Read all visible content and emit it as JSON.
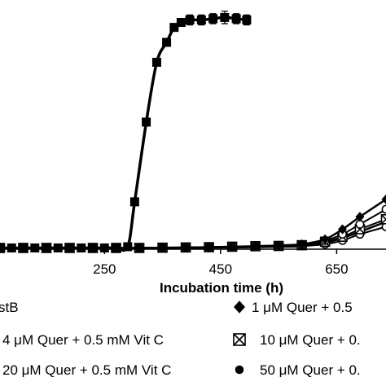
{
  "chart_data": {
    "type": "line",
    "title": "",
    "xlabel": "Incubation time (h)",
    "ylabel": "",
    "x_ticks": [
      250,
      450,
      650
    ],
    "x_tick_labels": [
      "250",
      "450",
      "650"
    ],
    "xlim": [
      70,
      735
    ],
    "ylim": [
      0,
      100
    ],
    "grid": false,
    "legend_position": "bottom",
    "series": [
      {
        "name": "",
        "marker": "square",
        "points": [
          [
            70,
            0.5
          ],
          [
            90,
            0.5
          ],
          [
            110,
            0.5
          ],
          [
            130,
            0.5
          ],
          [
            150,
            0.5
          ],
          [
            170,
            0.5
          ],
          [
            190,
            0.5
          ],
          [
            210,
            0.5
          ],
          [
            230,
            0.5
          ],
          [
            250,
            0.5
          ],
          [
            270,
            0.6
          ],
          [
            290,
            1
          ],
          [
            302,
            19
          ],
          [
            322,
            51
          ],
          [
            340,
            75
          ],
          [
            357,
            83
          ],
          [
            370,
            89
          ],
          [
            382,
            91
          ],
          [
            397,
            92
          ],
          [
            417,
            92
          ],
          [
            437,
            92.5
          ],
          [
            457,
            93
          ],
          [
            477,
            92.5
          ],
          [
            495,
            92
          ]
        ],
        "errors": [
          0,
          0,
          0,
          0,
          0,
          0,
          0,
          0,
          0,
          0,
          0,
          0,
          0,
          0,
          0,
          1.5,
          1.5,
          1.5,
          2,
          2,
          2,
          2.5,
          2,
          2
        ]
      },
      {
        "name": "1 μM Quer + 0.5",
        "marker": "diamond",
        "points": [
          [
            70,
            0.5
          ],
          [
            110,
            0.5
          ],
          [
            150,
            0.5
          ],
          [
            190,
            0.5
          ],
          [
            230,
            0.5
          ],
          [
            270,
            0.5
          ],
          [
            310,
            0.5
          ],
          [
            350,
            0.6
          ],
          [
            390,
            0.7
          ],
          [
            430,
            0.8
          ],
          [
            470,
            1
          ],
          [
            510,
            1.2
          ],
          [
            550,
            1.5
          ],
          [
            590,
            2
          ],
          [
            630,
            4
          ],
          [
            660,
            8
          ],
          [
            690,
            13
          ],
          [
            735,
            20
          ]
        ]
      },
      {
        "name": "4 μM Quer + 0.5 mM Vit C",
        "marker": "circle-open",
        "points": [
          [
            70,
            0.5
          ],
          [
            110,
            0.5
          ],
          [
            150,
            0.5
          ],
          [
            190,
            0.5
          ],
          [
            230,
            0.5
          ],
          [
            270,
            0.5
          ],
          [
            310,
            0.5
          ],
          [
            350,
            0.6
          ],
          [
            390,
            0.7
          ],
          [
            430,
            0.8
          ],
          [
            470,
            1
          ],
          [
            510,
            1.2
          ],
          [
            550,
            1.4
          ],
          [
            590,
            1.8
          ],
          [
            630,
            3.5
          ],
          [
            660,
            6
          ],
          [
            690,
            10
          ],
          [
            735,
            16
          ]
        ]
      },
      {
        "name": "10 μM Quer + 0.",
        "marker": "square-x",
        "points": [
          [
            70,
            0.5
          ],
          [
            110,
            0.5
          ],
          [
            150,
            0.5
          ],
          [
            190,
            0.5
          ],
          [
            230,
            0.5
          ],
          [
            270,
            0.5
          ],
          [
            310,
            0.5
          ],
          [
            350,
            0.6
          ],
          [
            390,
            0.7
          ],
          [
            430,
            0.8
          ],
          [
            470,
            1
          ],
          [
            510,
            1.2
          ],
          [
            550,
            1.3
          ],
          [
            590,
            1.6
          ],
          [
            630,
            3
          ],
          [
            660,
            5
          ],
          [
            690,
            8
          ],
          [
            735,
            12
          ]
        ]
      },
      {
        "name": "20 μM Quer + 0.5 mM Vit C",
        "marker": "circle-open",
        "points": [
          [
            70,
            0.5
          ],
          [
            110,
            0.5
          ],
          [
            150,
            0.5
          ],
          [
            190,
            0.5
          ],
          [
            230,
            0.5
          ],
          [
            270,
            0.5
          ],
          [
            310,
            0.5
          ],
          [
            350,
            0.5
          ],
          [
            390,
            0.6
          ],
          [
            430,
            0.7
          ],
          [
            470,
            0.8
          ],
          [
            510,
            1
          ],
          [
            550,
            1.1
          ],
          [
            590,
            1.3
          ],
          [
            630,
            2
          ],
          [
            660,
            3.5
          ],
          [
            690,
            6
          ],
          [
            735,
            9
          ]
        ]
      },
      {
        "name": "50 μM Quer + 0.",
        "marker": "circle",
        "points": [
          [
            70,
            0.5
          ],
          [
            110,
            0.5
          ],
          [
            150,
            0.5
          ],
          [
            190,
            0.5
          ],
          [
            230,
            0.5
          ],
          [
            270,
            0.5
          ],
          [
            310,
            0.5
          ],
          [
            350,
            0.5
          ],
          [
            390,
            0.5
          ],
          [
            430,
            0.6
          ],
          [
            470,
            0.7
          ],
          [
            510,
            0.8
          ],
          [
            550,
            1
          ],
          [
            590,
            1.2
          ],
          [
            630,
            2.5
          ],
          [
            660,
            4.5
          ],
          [
            690,
            7
          ],
          [
            735,
            11
          ]
        ]
      }
    ],
    "legend": [
      {
        "series": 0,
        "label": "stB"
      },
      {
        "series": 1,
        "label": "1 μM Quer + 0.5"
      },
      {
        "series": 2,
        "label": "4 μM Quer + 0.5 mM Vit C"
      },
      {
        "series": 3,
        "label": "10 μM Quer + 0."
      },
      {
        "series": 4,
        "label": "20 μM Quer + 0.5 mM Vit C"
      },
      {
        "series": 5,
        "label": "50 μM Quer + 0."
      }
    ]
  }
}
